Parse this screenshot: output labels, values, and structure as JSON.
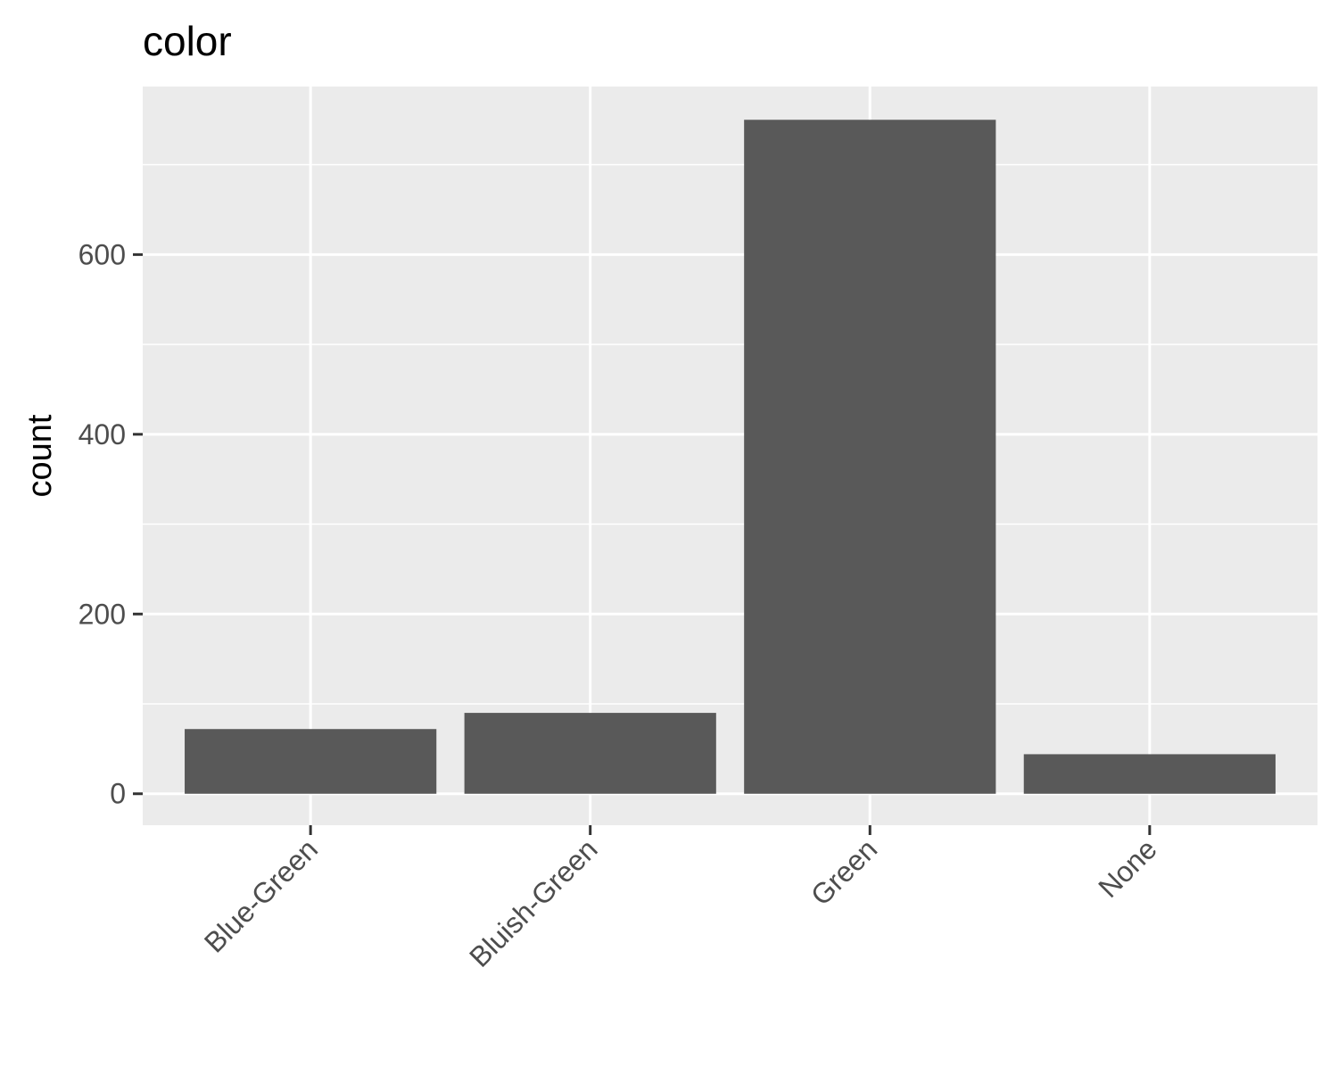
{
  "chart_data": {
    "type": "bar",
    "title": "color",
    "xlabel": "",
    "ylabel": "count",
    "categories": [
      "Blue-Green",
      "Bluish-Green",
      "Green",
      "None"
    ],
    "values": [
      72,
      90,
      750,
      44
    ],
    "ylim": [
      -35,
      787
    ],
    "yticks": [
      0,
      200,
      400,
      600
    ],
    "ytick_labels": [
      "0",
      "200",
      "400",
      "600"
    ],
    "grid": true,
    "legend": "none",
    "colors": {
      "bar": "#595959",
      "panel": "#ebebeb",
      "grid": "#ffffff",
      "tick_text": "#4d4d4d",
      "tick_mark": "#333333"
    }
  }
}
